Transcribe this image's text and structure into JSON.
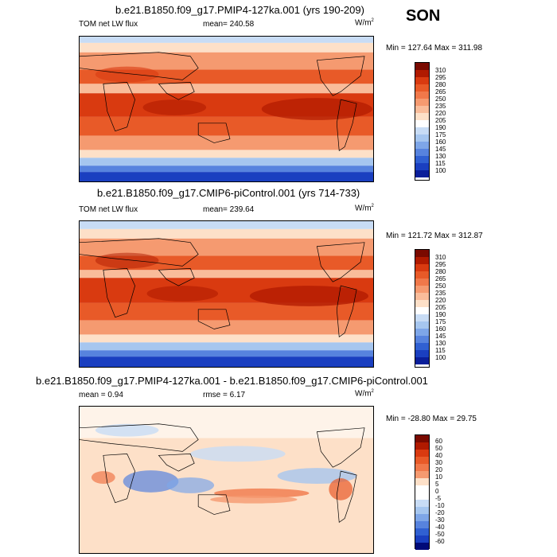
{
  "season": "SON",
  "panels": [
    {
      "title": "b.e21.B1850.f09_g17.PMIP4-127ka.001 (yrs 190-209)",
      "left": "TOM net LW flux",
      "center": "mean= 240.58",
      "units": "W/m",
      "units_sup": "2",
      "minmax": "Min = 127.64 Max = 311.98",
      "colorbar_labels": [
        "310",
        "295",
        "280",
        "265",
        "250",
        "235",
        "220",
        "205",
        "190",
        "175",
        "160",
        "145",
        "130",
        "115",
        "100"
      ]
    },
    {
      "title": "b.e21.B1850.f09_g17.CMIP6-piControl.001 (yrs 714-733)",
      "left": "TOM net LW flux",
      "center": "mean= 239.64",
      "units": "W/m",
      "units_sup": "2",
      "minmax": "Min = 121.72 Max = 312.87",
      "colorbar_labels": [
        "310",
        "295",
        "280",
        "265",
        "250",
        "235",
        "220",
        "205",
        "190",
        "175",
        "160",
        "145",
        "130",
        "115",
        "100"
      ]
    },
    {
      "title": "b.e21.B1850.f09_g17.PMIP4-127ka.001 - b.e21.B1850.f09_g17.CMIP6-piControl.001",
      "left": "mean =  0.94",
      "center": "rmse =  6.17",
      "units": "W/m",
      "units_sup": "2",
      "minmax": "Min = -28.80 Max =  29.75",
      "colorbar_labels": [
        "60",
        "50",
        "40",
        "30",
        "20",
        "10",
        "5",
        "0",
        "-5",
        "-10",
        "-20",
        "-30",
        "-40",
        "-50",
        "-60"
      ]
    }
  ],
  "colors": {
    "abs_scale": [
      "#7a0a00",
      "#b01a00",
      "#d93a10",
      "#e85a28",
      "#f0784a",
      "#f59a70",
      "#f9bc9a",
      "#fde0c8",
      "#ffffff",
      "#c8dcf5",
      "#a6c6ef",
      "#7ea6e8",
      "#5783de",
      "#3060d2",
      "#1a3fc0",
      "#0a1e9a",
      "#000a78"
    ],
    "diff_scale": [
      "#7a0a00",
      "#b01a00",
      "#d93a10",
      "#e85a28",
      "#f0784a",
      "#f59a70",
      "#fde0c8",
      "#ffffff",
      "#ffffff",
      "#c8dcf5",
      "#a6c6ef",
      "#7ea6e8",
      "#5783de",
      "#3060d2",
      "#1a3fc0",
      "#000a78"
    ]
  }
}
